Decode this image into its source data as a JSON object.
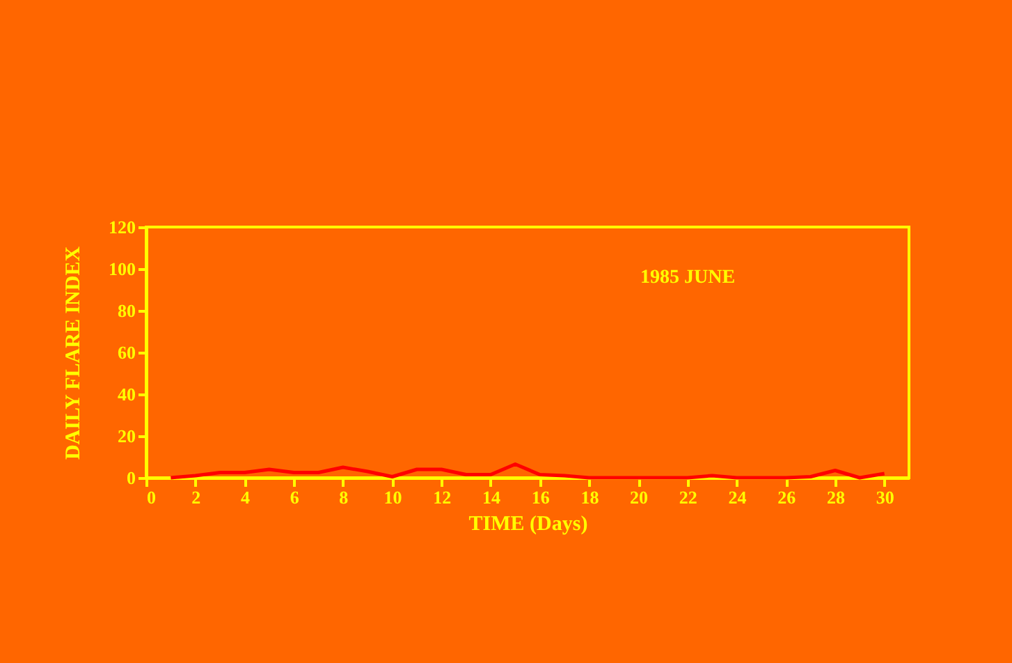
{
  "chart_data": {
    "type": "line",
    "xlabel": "TIME (Days)",
    "ylabel": "DAILY FLARE INDEX",
    "annotations": [
      "1985  JUNE"
    ],
    "x": [
      1,
      2,
      3,
      4,
      5,
      6,
      7,
      8,
      9,
      10,
      11,
      12,
      13,
      14,
      15,
      16,
      17,
      18,
      19,
      20,
      21,
      22,
      23,
      24,
      25,
      26,
      27,
      28,
      29,
      30
    ],
    "series": [
      {
        "color": "#ff0000",
        "values": [
          0,
          1,
          2.5,
          2.5,
          4,
          2.5,
          2.5,
          5,
          3,
          0.5,
          4,
          4,
          1.5,
          1.5,
          6.5,
          1.5,
          1,
          0,
          0,
          0,
          0,
          0,
          1,
          0,
          0,
          0,
          0.5,
          3.5,
          0,
          2
        ]
      }
    ],
    "xlim": [
      0,
      31
    ],
    "xticks": [
      0,
      2,
      4,
      6,
      8,
      10,
      12,
      14,
      16,
      18,
      20,
      22,
      24,
      26,
      28,
      30
    ],
    "ylim": [
      0,
      120
    ],
    "yticks": [
      0,
      20,
      40,
      60,
      80,
      100,
      120
    ],
    "grid": false,
    "legend": false,
    "marker": "none",
    "line_style": "solid"
  }
}
